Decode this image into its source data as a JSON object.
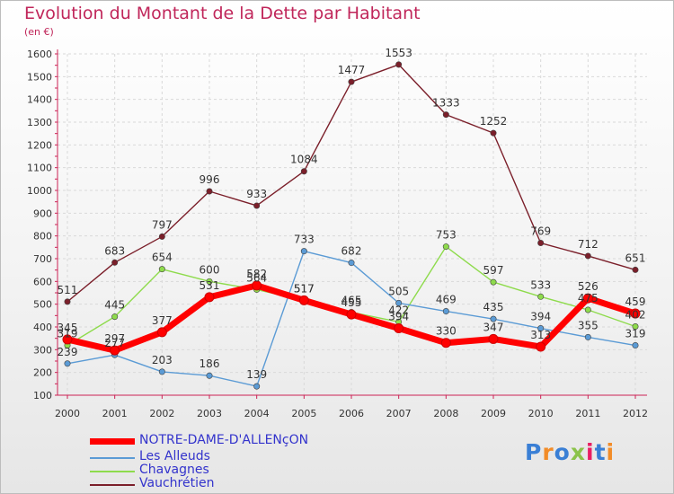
{
  "header": {
    "title": "Evolution du Montant de la Dette par Habitant",
    "subtitle": "(en €)"
  },
  "logo": {
    "text": "Proxiti",
    "colors": [
      "#3a7fd5",
      "#f28c28",
      "#3a7fd5",
      "#8bc34a",
      "#e91e63",
      "#3a7fd5",
      "#f28c28"
    ]
  },
  "chart_data": {
    "type": "line",
    "title": "Evolution du Montant de la Dette par Habitant",
    "ylabel": "(en €)",
    "xlabel": "",
    "ylim": [
      100,
      1600
    ],
    "yticks": [
      100,
      200,
      300,
      400,
      500,
      600,
      700,
      800,
      900,
      1000,
      1100,
      1200,
      1300,
      1400,
      1500,
      1600
    ],
    "x": [
      "2000",
      "2001",
      "2002",
      "2003",
      "2004",
      "2005",
      "2006",
      "2007",
      "2008",
      "2009",
      "2010",
      "2011",
      "2012"
    ],
    "grid": true,
    "legend_position": "bottom-left",
    "series": [
      {
        "name": "Vauchrétien",
        "color": "#7b1f2a",
        "values": [
          511,
          683,
          797,
          996,
          933,
          1084,
          1477,
          1553,
          1333,
          1252,
          769,
          712,
          651
        ]
      },
      {
        "name": "Chavagnes",
        "color": "#8edb4c",
        "values": [
          319,
          445,
          654,
          600,
          564,
          517,
          465,
          422,
          753,
          597,
          533,
          475,
          402
        ]
      },
      {
        "name": "Les Alleuds",
        "color": "#5b9bd5",
        "values": [
          239,
          277,
          203,
          186,
          139,
          733,
          682,
          505,
          469,
          435,
          394,
          355,
          319
        ]
      },
      {
        "name": "NOTRE-DAME-D'ALLENçON",
        "color": "#ff0000",
        "values": [
          345,
          297,
          377,
          531,
          582,
          517,
          455,
          394,
          330,
          347,
          313,
          526,
          459
        ]
      }
    ]
  }
}
